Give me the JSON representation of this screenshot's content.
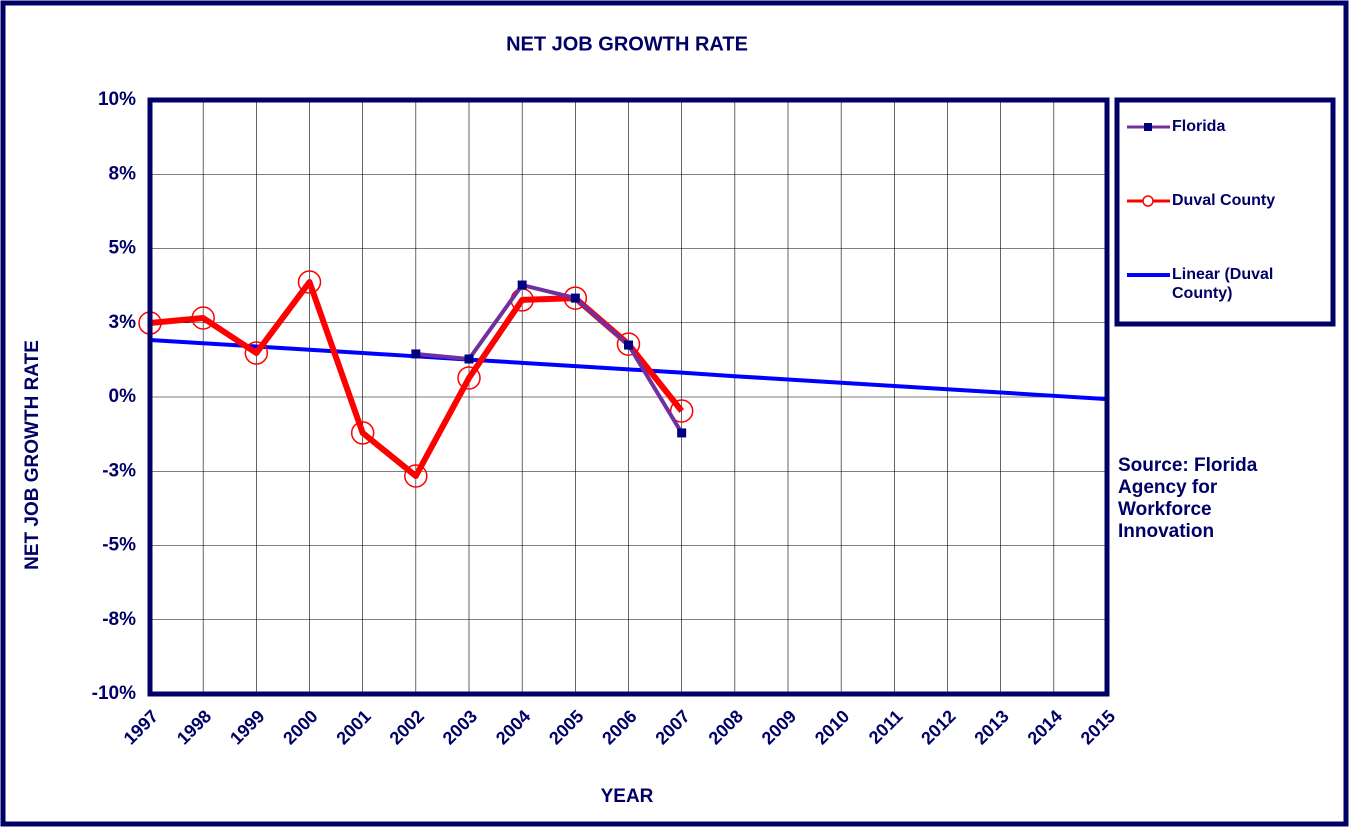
{
  "chart_data": {
    "type": "line",
    "title": "NET JOB GROWTH RATE",
    "x_label": "YEAR",
    "y_label": "NET JOB GROWTH RATE",
    "annotation": "Source: Florida Agency for Workforce Innovation",
    "x": [
      1997,
      1998,
      1999,
      2000,
      2001,
      2002,
      2003,
      2004,
      2005,
      2006,
      2007,
      2008,
      2009,
      2010,
      2011,
      2012,
      2013,
      2014,
      2015
    ],
    "xlim": [
      1997,
      2015
    ],
    "xticks": [
      1997,
      1998,
      1999,
      2000,
      2001,
      2002,
      2003,
      2004,
      2005,
      2006,
      2007,
      2008,
      2009,
      2010,
      2011,
      2012,
      2013,
      2014,
      2015
    ],
    "ylim": [
      -10,
      10
    ],
    "yticks": [
      {
        "value": 10,
        "label": "10%"
      },
      {
        "value": 7.5,
        "label": "8%"
      },
      {
        "value": 5,
        "label": "5%"
      },
      {
        "value": 2.5,
        "label": "3%"
      },
      {
        "value": 0,
        "label": "0%"
      },
      {
        "value": -2.5,
        "label": "-3%"
      },
      {
        "value": -5,
        "label": "-5%"
      },
      {
        "value": -7.5,
        "label": "-8%"
      },
      {
        "value": -10,
        "label": "-10%"
      }
    ],
    "grid": true,
    "legend": "right",
    "series": [
      {
        "name": "Linear (Duval County)",
        "color": "#0000ff",
        "marker": "none",
        "values": [
          1.92,
          1.81,
          1.7,
          1.59,
          1.48,
          1.37,
          1.26,
          1.15,
          1.04,
          0.93,
          0.82,
          0.7,
          0.59,
          0.48,
          0.37,
          0.26,
          0.15,
          0.04,
          -0.07
        ]
      },
      {
        "name": "Duval County",
        "color": "#ff0000",
        "marker": "circle",
        "values": [
          2.49,
          2.66,
          1.48,
          3.87,
          -1.21,
          -2.66,
          0.64,
          3.27,
          3.33,
          1.78,
          -0.47,
          null,
          null,
          null,
          null,
          null,
          null,
          null,
          null
        ]
      },
      {
        "name": "Florida",
        "color": "#7030a0",
        "marker": "square",
        "values": [
          null,
          null,
          null,
          null,
          null,
          1.45,
          1.28,
          3.77,
          3.33,
          1.75,
          -1.21,
          null,
          null,
          null,
          null,
          null,
          null,
          null,
          null
        ]
      }
    ]
  }
}
